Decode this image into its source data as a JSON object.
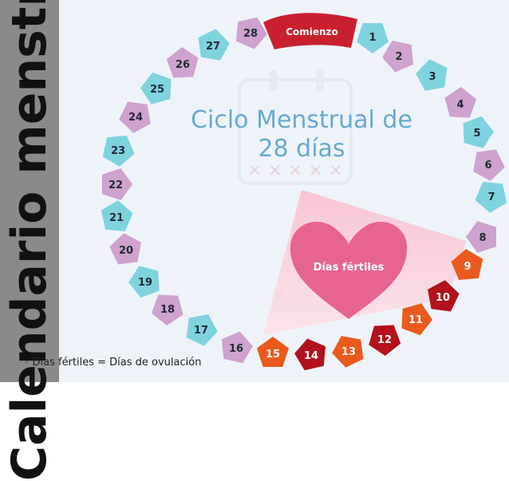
{
  "side_title": "Calendario menstrual",
  "title_line1": "Ciclo Menstrual de",
  "title_line2": "28 días",
  "start_label": "Comienzo",
  "fertile_label": "Días fértiles",
  "footnote": "Días fértiles = Días de ovulación",
  "days": [
    "1",
    "2",
    "3",
    "4",
    "5",
    "6",
    "7",
    "8",
    "9",
    "10",
    "11",
    "12",
    "13",
    "14",
    "15",
    "16",
    "17",
    "18",
    "19",
    "20",
    "21",
    "22",
    "23",
    "24",
    "25",
    "26",
    "27",
    "28"
  ],
  "colors": {
    "teal": "#7fd3df",
    "pink": "#cfa2cf",
    "start_red": "#c8202f",
    "fertile_orange": "#ea5a1e",
    "fertile_red": "#b3111c",
    "heart": "#e7648e",
    "wedge": "#f8c9d7"
  }
}
